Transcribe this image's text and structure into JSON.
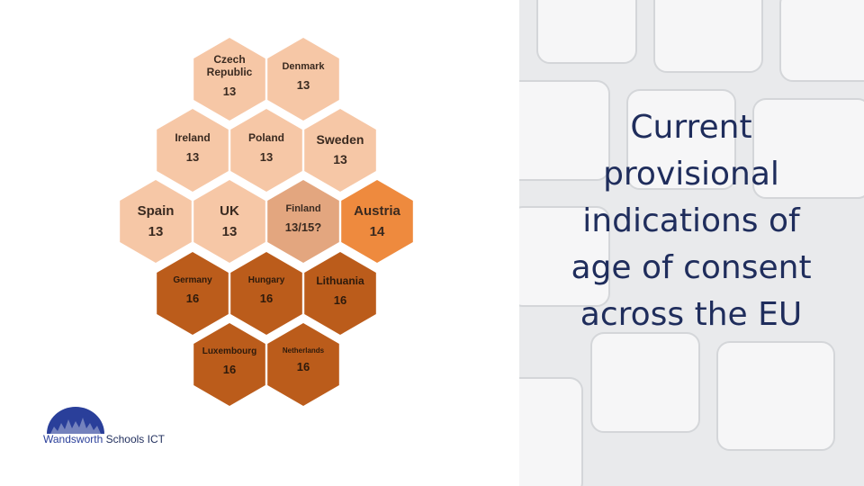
{
  "title": [
    "Current",
    "provisional",
    "indications of",
    "age of consent",
    "across the EU"
  ],
  "nodes": [
    {
      "label": "Czech Republic",
      "value": "13",
      "color": "#f6c7a6"
    },
    {
      "label": "Denmark",
      "value": "13",
      "color": "#f6c7a6"
    },
    {
      "label": "Ireland",
      "value": "13",
      "color": "#f6c7a6"
    },
    {
      "label": "Poland",
      "value": "13",
      "color": "#f6c7a6"
    },
    {
      "label": "Sweden",
      "value": "13",
      "color": "#f6c7a6"
    },
    {
      "label": "Spain",
      "value": "13",
      "color": "#f6c7a6"
    },
    {
      "label": "UK",
      "value": "13",
      "color": "#f6c7a6"
    },
    {
      "label": "Finland",
      "value": "13/15?",
      "color": "#e3a67f"
    },
    {
      "label": "Austria",
      "value": "14",
      "color": "#ee8a3e"
    },
    {
      "label": "Germany",
      "value": "16",
      "color": "#bb5c1b"
    },
    {
      "label": "Hungary",
      "value": "16",
      "color": "#bb5c1b"
    },
    {
      "label": "Lithuania",
      "value": "16",
      "color": "#bb5c1b"
    },
    {
      "label": "Luxembourg",
      "value": "16",
      "color": "#bb5c1b"
    },
    {
      "label": "Netherlands",
      "value": "16",
      "color": "#bb5c1b"
    }
  ],
  "logo": {
    "name": "Wandsworth",
    "suffix": "Schools ICT"
  }
}
